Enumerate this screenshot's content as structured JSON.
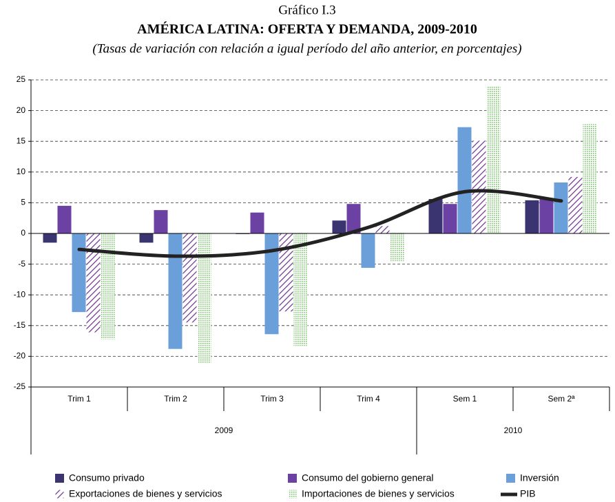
{
  "chart_data": {
    "type": "bar",
    "caption": "Gráfico I.3",
    "title": "AMÉRICA LATINA: OFERTA Y DEMANDA, 2009-2010",
    "subtitle": "(Tasas de variación con relación a igual período del año anterior, en porcentajes)",
    "categories": [
      "Trim 1",
      "Trim 2",
      "Trim 3",
      "Trim 4",
      "Sem 1",
      "Sem 2ª"
    ],
    "groups": [
      {
        "label": "2009",
        "span": 4
      },
      {
        "label": "2010",
        "span": 2
      }
    ],
    "series": [
      {
        "name": "Consumo privado",
        "color": "#3a3470",
        "pattern": "solid",
        "values": [
          -1.5,
          -1.5,
          -0.1,
          2.1,
          5.6,
          5.4
        ]
      },
      {
        "name": "Consumo del gobierno general",
        "color": "#6b42a3",
        "pattern": "solid",
        "values": [
          4.5,
          3.8,
          3.4,
          4.8,
          4.8,
          5.6
        ]
      },
      {
        "name": "Inversión",
        "color": "#6b9fd9",
        "pattern": "solid",
        "values": [
          -12.8,
          -18.8,
          -16.4,
          -5.6,
          17.3,
          8.3
        ]
      },
      {
        "name": "Exportaciones de bienes y servicios",
        "color": "#6b2f8f",
        "pattern": "hatch",
        "values": [
          -16.1,
          -14.5,
          -12.7,
          1.2,
          15.1,
          9.2
        ]
      },
      {
        "name": "Importaciones de bienes y servicios",
        "color": "#7cc46e",
        "pattern": "dots",
        "values": [
          -17.2,
          -21.2,
          -18.3,
          -4.5,
          24.0,
          17.8
        ]
      },
      {
        "name": "PIB",
        "color": "#222222",
        "type": "line",
        "values": [
          -2.6,
          -3.7,
          -2.8,
          1.0,
          6.8,
          5.3
        ]
      }
    ],
    "ylim": [
      -25,
      25
    ],
    "yticks": [
      -25,
      -20,
      -15,
      -10,
      -5,
      0,
      5,
      10,
      15,
      20,
      25
    ],
    "grid": true
  }
}
